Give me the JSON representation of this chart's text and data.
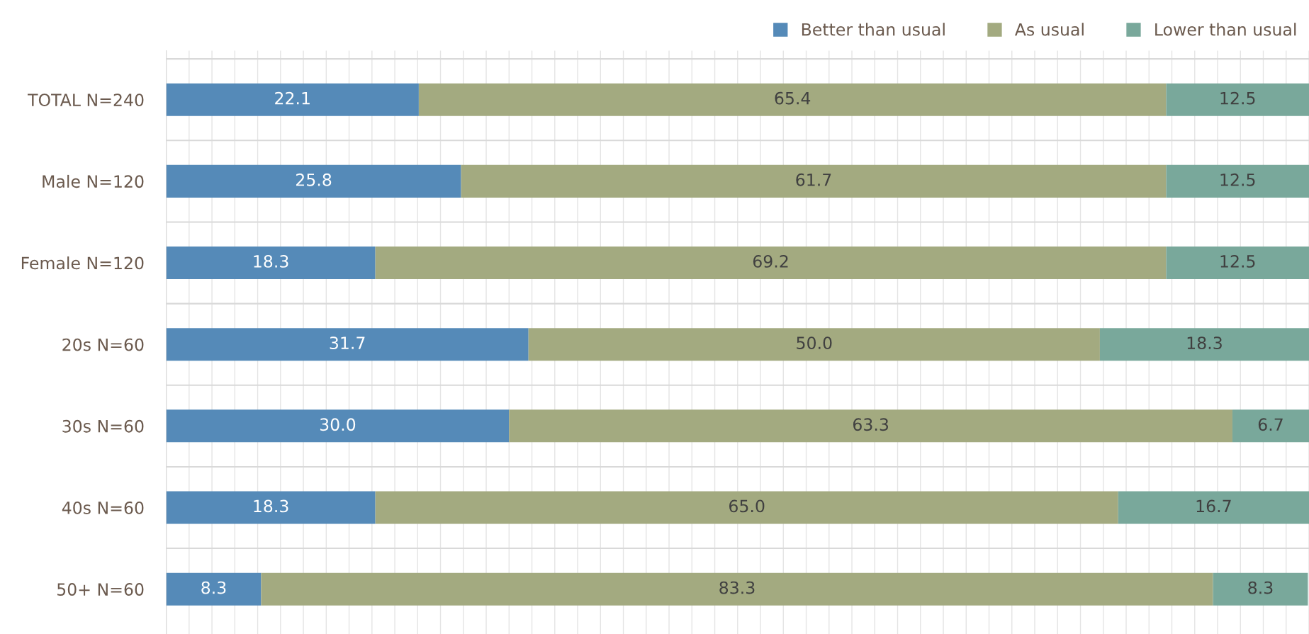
{
  "chart_data": {
    "type": "bar",
    "orientation": "horizontal",
    "stacked": true,
    "categories": [
      "TOTAL N=240",
      "Male N=120",
      "Female N=120",
      "20s N=60",
      "30s N=60",
      "40s N=60",
      "50+ N=60"
    ],
    "series": [
      {
        "name": "Better than usual",
        "color": "#558ab8",
        "values": [
          22.1,
          25.8,
          18.3,
          31.7,
          30.0,
          18.3,
          8.3
        ],
        "value_labels": [
          "22.1",
          "25.8",
          "18.3",
          "31.7",
          "30.0",
          "18.3",
          "8.3"
        ]
      },
      {
        "name": "As usual",
        "color": "#a3aa80",
        "values": [
          65.4,
          61.7,
          69.2,
          50.0,
          63.3,
          65.0,
          83.3
        ],
        "value_labels": [
          "65.4",
          "61.7",
          "69.2",
          "50.0",
          "63.3",
          "65.0",
          "83.3"
        ]
      },
      {
        "name": "Lower than usual",
        "color": "#79a89b",
        "values": [
          12.5,
          12.5,
          12.5,
          18.3,
          6.7,
          16.7,
          8.3
        ],
        "value_labels": [
          "12.5",
          "12.5",
          "12.5",
          "18.3",
          "6.7",
          "16.7",
          "8.3"
        ]
      }
    ],
    "xlim": [
      0,
      100
    ],
    "xticks": [
      {
        "value": 0,
        "label": null
      },
      {
        "value": 2,
        "label": null
      },
      {
        "value": 4,
        "label": null
      },
      {
        "value": 6,
        "label": null
      },
      {
        "value": 8,
        "label": null
      },
      {
        "value": 10,
        "label": null
      },
      {
        "value": 12,
        "label": null
      },
      {
        "value": 14,
        "label": null
      },
      {
        "value": 16,
        "label": null
      },
      {
        "value": 18,
        "label": null
      },
      {
        "value": 20,
        "label": null
      },
      {
        "value": 22,
        "label": null
      },
      {
        "value": 24,
        "label": null
      },
      {
        "value": 26,
        "label": null
      },
      {
        "value": 28,
        "label": null
      },
      {
        "value": 30,
        "label": null
      },
      {
        "value": 32,
        "label": null
      },
      {
        "value": 34,
        "label": null
      },
      {
        "value": 36,
        "label": null
      },
      {
        "value": 38,
        "label": null
      },
      {
        "value": 40,
        "label": null
      },
      {
        "value": 42,
        "label": null
      },
      {
        "value": 44,
        "label": null
      },
      {
        "value": 46,
        "label": null
      },
      {
        "value": 48,
        "label": null
      },
      {
        "value": 50,
        "label": null
      },
      {
        "value": 52,
        "label": null
      },
      {
        "value": 54,
        "label": null
      },
      {
        "value": 56,
        "label": null
      },
      {
        "value": 58,
        "label": null
      },
      {
        "value": 60,
        "label": null
      },
      {
        "value": 62,
        "label": null
      },
      {
        "value": 64,
        "label": null
      },
      {
        "value": 66,
        "label": null
      },
      {
        "value": 68,
        "label": null
      },
      {
        "value": 70,
        "label": null
      },
      {
        "value": 72,
        "label": null
      },
      {
        "value": 74,
        "label": null
      },
      {
        "value": 76,
        "label": null
      },
      {
        "value": 78,
        "label": null
      },
      {
        "value": 80,
        "label": null
      },
      {
        "value": 82,
        "label": null
      },
      {
        "value": 84,
        "label": null
      },
      {
        "value": 86,
        "label": null
      },
      {
        "value": 88,
        "label": null
      },
      {
        "value": 90,
        "label": null
      },
      {
        "value": 92,
        "label": null
      },
      {
        "value": 94,
        "label": null
      },
      {
        "value": 96,
        "label": null
      },
      {
        "value": 98,
        "label": null
      },
      {
        "value": 100,
        "label": null
      }
    ],
    "tick_labels": "y",
    "grid": true,
    "legend": "top right"
  }
}
